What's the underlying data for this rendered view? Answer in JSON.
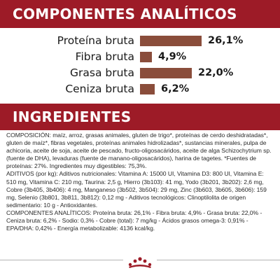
{
  "analytics": {
    "title": "COMPONENTES ANALÍTICOS",
    "items": [
      {
        "label": "Proteína bruta",
        "value_text": "26,1%",
        "value": 26.1
      },
      {
        "label": "Fibra bruta",
        "value_text": "4,9%",
        "value": 4.9
      },
      {
        "label": "Grasa bruta",
        "value_text": "22,0%",
        "value": 22.0
      },
      {
        "label": "Ceniza bruta",
        "value_text": "6,2%",
        "value": 6.2
      }
    ],
    "colors": {
      "banner": "#9d1b27",
      "bar": "#8a4d3b"
    }
  },
  "ingredients": {
    "title": "INGREDIENTES",
    "composition": "COMPOSICIÓN: maíz, arroz, grasas animales, gluten de trigo*, proteínas de cerdo deshidratadas*, gluten de maíz*, fibras vegetales, proteínas animales hidrolizadas*, sustancias minerales, pulpa de achicoria, aceite de soja, aceite de pescado, fructo-oligosacáridos, aceite de alga Schizochytrium sp. (fuente de DHA), levaduras (fuente de manano-oligosacáridos), harina de tagetes. *Fuentes de proteínas: 27%. Ingredientes muy digestibles: 75,3%.",
    "additives": "ADITIVOS (por kg): Aditivos nutricionales: Vitamina A: 15000 UI, Vitamina D3: 800 UI, Vitamina E: 510 mg, Vitamina C: 210 mg, Taurina: 2,5 g, Hierro (3b103): 41 mg, Yodo (3b201, 3b202): 2,6 mg, Cobre (3b405, 3b406): 4 mg, Manganeso (3b502, 3b504): 29 mg, Zinc (3b603, 3b605, 3b606): 159 mg, Selenio (3b801, 3b811, 3b812): 0,12 mg - Aditivos tecnológicos: Clinoptilolita de origen sedimentario: 10 g - Antioxidantes.",
    "analytic": "COMPONENTES ANALÍTICOS: Proteína bruta: 26,1% - Fibra bruta: 4,9% - Grasa bruta: 22,0% - Ceniza bruta: 6,2% - Sodio: 0,3% - Cobre (total): 7 mg/kg - Ácidos grasos omega-3: 0,91% - EPA/DHA: 0,42% - Energía metabolizable: 4136 kcal/kg."
  },
  "footer": {
    "logo_icon": "royal-canin-crown-icon"
  }
}
